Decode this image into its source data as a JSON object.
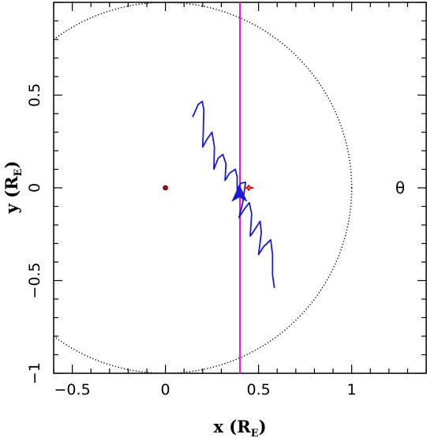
{
  "chart_data": {
    "type": "line",
    "title": "",
    "xlabel": {
      "main": "x (R",
      "sub": "E",
      "end": ")"
    },
    "ylabel": {
      "main": "y (R",
      "sub": "E",
      "end": ")"
    },
    "xlim": [
      -0.6,
      1.4
    ],
    "ylim": [
      -1.0,
      1.0
    ],
    "xticks": [
      -0.5,
      0,
      0.5,
      1
    ],
    "xtick_labels": [
      "−0.5",
      "0",
      "0.5",
      "1"
    ],
    "yticks": [
      -1,
      -0.5,
      0,
      0.5
    ],
    "ytick_labels": [
      "−1",
      "−0.5",
      "0",
      "0.5"
    ],
    "grid": false,
    "colors": {
      "trajectory": "#1a1adb",
      "vertical_line": "#e01ee0",
      "red_caustic": "#e01010",
      "circle": "#000000",
      "source": "#c00000"
    },
    "series": [
      {
        "points": [
          [
            0.146,
            0.382
          ],
          [
            0.176,
            0.45
          ],
          [
            0.198,
            0.466
          ],
          [
            0.206,
            0.42
          ],
          [
            0.203,
            0.3
          ],
          [
            0.2,
            0.22
          ],
          [
            0.223,
            0.262
          ],
          [
            0.25,
            0.3
          ],
          [
            0.263,
            0.22
          ],
          [
            0.26,
            0.1
          ],
          [
            0.283,
            0.16
          ],
          [
            0.308,
            0.18
          ],
          [
            0.325,
            0.13
          ],
          [
            0.32,
            0.04
          ],
          [
            0.345,
            0.08
          ],
          [
            0.375,
            0.1
          ],
          [
            0.385,
            0.06
          ],
          [
            0.385,
            -0.01
          ],
          [
            0.405,
            0.025
          ],
          [
            0.43,
            0.03
          ],
          [
            0.415,
            -0.08
          ],
          [
            0.395,
            -0.16
          ],
          [
            0.42,
            -0.12
          ],
          [
            0.45,
            -0.08
          ],
          [
            0.463,
            -0.14
          ],
          [
            0.455,
            -0.26
          ],
          [
            0.47,
            -0.24
          ],
          [
            0.508,
            -0.18
          ],
          [
            0.515,
            -0.24
          ],
          [
            0.5,
            -0.36
          ],
          [
            0.525,
            -0.32
          ],
          [
            0.565,
            -0.28
          ],
          [
            0.575,
            -0.36
          ],
          [
            0.575,
            -0.47
          ],
          [
            0.585,
            -0.54
          ]
        ]
      }
    ],
    "annotations": {
      "vertical_line_x": 0.4,
      "circle": {
        "center": [
          0.0,
          0.0
        ],
        "radius": 1.0
      },
      "source_point": [
        0.0,
        0.0
      ],
      "caustic_center": [
        0.447,
        0.0
      ],
      "caustic_half_width": 0.025,
      "caustic_half_height": 0.016,
      "arrow_tip": [
        0.397,
        -0.045
      ],
      "theta_marker": {
        "text": "θ",
        "position": [
          1.26,
          0.0
        ]
      }
    }
  }
}
